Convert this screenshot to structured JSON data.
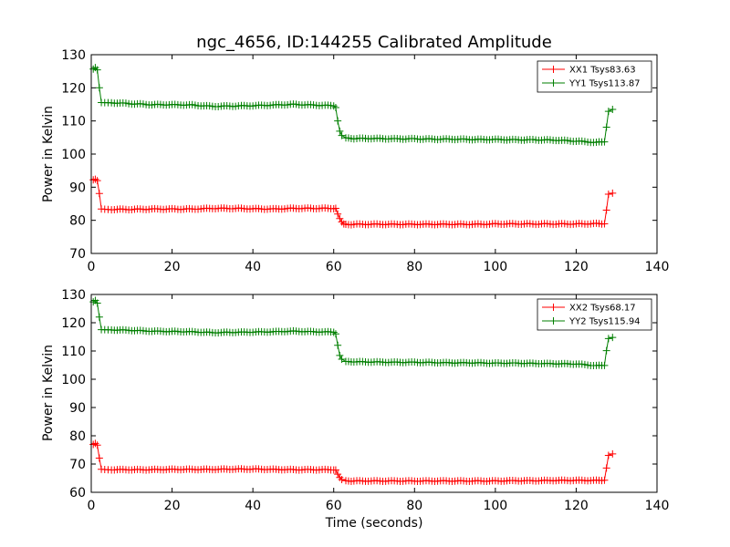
{
  "figure_title": "ngc_4656, ID:144255 Calibrated Amplitude",
  "colors": {
    "xx": "#ff0000",
    "yy": "#007f00",
    "axis": "#000000"
  },
  "chart_data": [
    {
      "type": "line",
      "title": "ngc_4656, ID:144255 Calibrated Amplitude",
      "xlabel": "",
      "ylabel": "Power in Kelvin",
      "xlim": [
        0,
        140
      ],
      "ylim": [
        70,
        130
      ],
      "xticks": [
        0,
        20,
        40,
        60,
        80,
        100,
        120,
        140
      ],
      "yticks": [
        70,
        80,
        90,
        100,
        110,
        120,
        130
      ],
      "legend_position": "top-right",
      "grid": false,
      "series": [
        {
          "name": "XX1 Tsys83.63",
          "color": "#ff0000",
          "points": [
            [
              0.5,
              92.3
            ],
            [
              1.0,
              92.3
            ],
            [
              1.5,
              92.1
            ],
            [
              2.0,
              88.0
            ],
            [
              2.5,
              83.5
            ],
            [
              5,
              83.3
            ],
            [
              10,
              83.3
            ],
            [
              15,
              83.4
            ],
            [
              20,
              83.4
            ],
            [
              25,
              83.4
            ],
            [
              30,
              83.6
            ],
            [
              35,
              83.6
            ],
            [
              40,
              83.5
            ],
            [
              45,
              83.4
            ],
            [
              50,
              83.6
            ],
            [
              55,
              83.6
            ],
            [
              60,
              83.6
            ],
            [
              60.5,
              83.5
            ],
            [
              61,
              82.0
            ],
            [
              61.5,
              80.5
            ],
            [
              62,
              79.5
            ],
            [
              62.5,
              79.0
            ],
            [
              63,
              78.7
            ],
            [
              65,
              78.8
            ],
            [
              70,
              78.8
            ],
            [
              75,
              78.8
            ],
            [
              80,
              78.8
            ],
            [
              85,
              78.8
            ],
            [
              90,
              78.8
            ],
            [
              95,
              78.8
            ],
            [
              100,
              78.9
            ],
            [
              105,
              78.9
            ],
            [
              110,
              78.9
            ],
            [
              115,
              78.9
            ],
            [
              120,
              78.9
            ],
            [
              125,
              79.0
            ],
            [
              127,
              79.0
            ],
            [
              127.5,
              83.0
            ],
            [
              128,
              88.0
            ],
            [
              129,
              88.2
            ]
          ]
        },
        {
          "name": "YY1 Tsys113.87",
          "color": "#007f00",
          "points": [
            [
              0.5,
              125.8
            ],
            [
              1.0,
              126.0
            ],
            [
              1.5,
              125.5
            ],
            [
              2.0,
              120.0
            ],
            [
              2.5,
              115.5
            ],
            [
              5,
              115.5
            ],
            [
              10,
              115.2
            ],
            [
              15,
              114.9
            ],
            [
              20,
              114.9
            ],
            [
              25,
              114.8
            ],
            [
              30,
              114.4
            ],
            [
              35,
              114.5
            ],
            [
              40,
              114.6
            ],
            [
              45,
              114.8
            ],
            [
              50,
              115.0
            ],
            [
              55,
              114.8
            ],
            [
              60,
              114.6
            ],
            [
              60.5,
              114.0
            ],
            [
              61,
              110.0
            ],
            [
              61.5,
              107.0
            ],
            [
              62,
              105.5
            ],
            [
              63,
              104.8
            ],
            [
              65,
              104.7
            ],
            [
              70,
              104.7
            ],
            [
              75,
              104.6
            ],
            [
              80,
              104.6
            ],
            [
              85,
              104.5
            ],
            [
              90,
              104.5
            ],
            [
              95,
              104.4
            ],
            [
              100,
              104.4
            ],
            [
              105,
              104.3
            ],
            [
              110,
              104.3
            ],
            [
              115,
              104.2
            ],
            [
              120,
              103.9
            ],
            [
              125,
              103.5
            ],
            [
              127,
              103.8
            ],
            [
              127.5,
              108.0
            ],
            [
              128,
              113.0
            ],
            [
              129,
              113.5
            ]
          ]
        }
      ]
    },
    {
      "type": "line",
      "title": "",
      "xlabel": "Time (seconds)",
      "ylabel": "Power in Kelvin",
      "xlim": [
        0,
        140
      ],
      "ylim": [
        60,
        130
      ],
      "xticks": [
        0,
        20,
        40,
        60,
        80,
        100,
        120,
        140
      ],
      "yticks": [
        60,
        70,
        80,
        90,
        100,
        110,
        120,
        130
      ],
      "legend_position": "top-right",
      "grid": false,
      "series": [
        {
          "name": "XX2 Tsys68.17",
          "color": "#ff0000",
          "points": [
            [
              0.5,
              77.0
            ],
            [
              1.0,
              77.2
            ],
            [
              1.5,
              76.8
            ],
            [
              2.0,
              72.0
            ],
            [
              2.5,
              68.2
            ],
            [
              5,
              68.0
            ],
            [
              10,
              68.0
            ],
            [
              15,
              68.0
            ],
            [
              20,
              68.1
            ],
            [
              25,
              68.1
            ],
            [
              30,
              68.1
            ],
            [
              35,
              68.2
            ],
            [
              40,
              68.2
            ],
            [
              45,
              68.1
            ],
            [
              50,
              68.0
            ],
            [
              55,
              68.0
            ],
            [
              60,
              68.0
            ],
            [
              60.5,
              67.8
            ],
            [
              61,
              66.5
            ],
            [
              61.5,
              65.2
            ],
            [
              62,
              64.5
            ],
            [
              63,
              64.0
            ],
            [
              65,
              64.0
            ],
            [
              70,
              64.0
            ],
            [
              75,
              64.0
            ],
            [
              80,
              64.0
            ],
            [
              85,
              64.0
            ],
            [
              90,
              64.0
            ],
            [
              95,
              64.0
            ],
            [
              100,
              64.0
            ],
            [
              105,
              64.1
            ],
            [
              110,
              64.1
            ],
            [
              115,
              64.2
            ],
            [
              120,
              64.2
            ],
            [
              125,
              64.2
            ],
            [
              127,
              64.3
            ],
            [
              127.5,
              68.5
            ],
            [
              128,
              73.2
            ],
            [
              129,
              73.6
            ]
          ]
        },
        {
          "name": "YY2 Tsys115.94",
          "color": "#007f00",
          "points": [
            [
              0.5,
              127.5
            ],
            [
              1.0,
              127.8
            ],
            [
              1.5,
              127.0
            ],
            [
              2.0,
              122.0
            ],
            [
              2.5,
              117.5
            ],
            [
              5,
              117.5
            ],
            [
              10,
              117.3
            ],
            [
              15,
              117.0
            ],
            [
              20,
              116.9
            ],
            [
              25,
              116.8
            ],
            [
              30,
              116.5
            ],
            [
              35,
              116.6
            ],
            [
              40,
              116.7
            ],
            [
              45,
              116.8
            ],
            [
              50,
              117.0
            ],
            [
              55,
              116.8
            ],
            [
              60,
              116.7
            ],
            [
              60.5,
              116.0
            ],
            [
              61,
              112.0
            ],
            [
              61.5,
              108.5
            ],
            [
              62,
              107.0
            ],
            [
              63,
              106.2
            ],
            [
              65,
              106.2
            ],
            [
              70,
              106.1
            ],
            [
              75,
              106.0
            ],
            [
              80,
              106.0
            ],
            [
              85,
              105.9
            ],
            [
              90,
              105.8
            ],
            [
              95,
              105.8
            ],
            [
              100,
              105.7
            ],
            [
              105,
              105.7
            ],
            [
              110,
              105.6
            ],
            [
              115,
              105.5
            ],
            [
              120,
              105.4
            ],
            [
              125,
              104.8
            ],
            [
              127,
              105.0
            ],
            [
              127.5,
              110.0
            ],
            [
              128,
              114.5
            ],
            [
              129,
              114.8
            ]
          ]
        }
      ]
    }
  ]
}
